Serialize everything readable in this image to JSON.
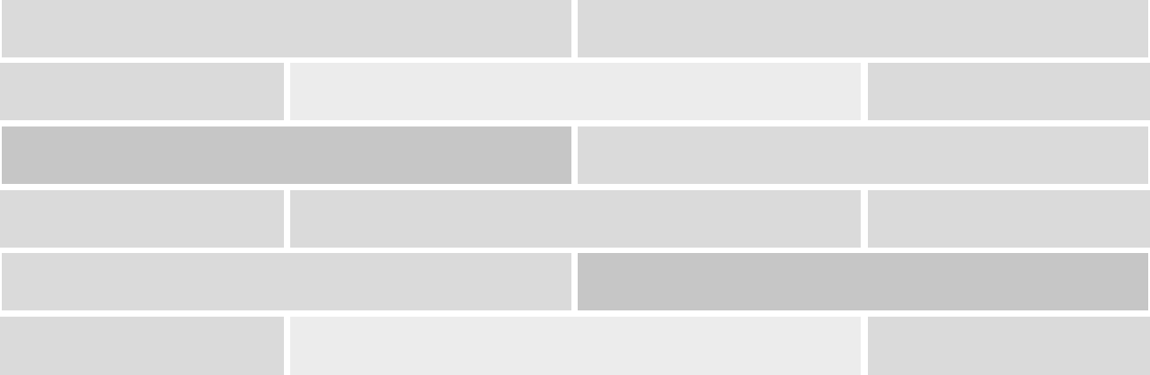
{
  "colors": {
    "background": "#ffffff",
    "light": "#ececec",
    "medium": "#dadada",
    "dark": "#c6c6c6"
  },
  "rows": [
    {
      "pattern": "halves",
      "tiles": [
        "medium",
        "medium"
      ]
    },
    {
      "pattern": "offset",
      "tiles": [
        "medium",
        "light",
        "medium"
      ]
    },
    {
      "pattern": "halves",
      "tiles": [
        "dark",
        "medium"
      ]
    },
    {
      "pattern": "offset",
      "tiles": [
        "medium",
        "medium",
        "medium"
      ]
    },
    {
      "pattern": "halves",
      "tiles": [
        "medium",
        "dark"
      ]
    },
    {
      "pattern": "offset",
      "tiles": [
        "medium",
        "light",
        "medium"
      ]
    }
  ]
}
